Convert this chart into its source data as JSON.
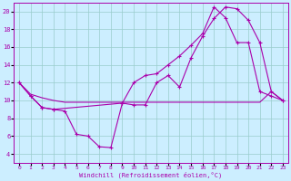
{
  "xlabel": "Windchill (Refroidissement éolien,°C)",
  "background_color": "#cceeff",
  "line_color": "#aa00aa",
  "grid_color": "#99cccc",
  "xlim": [
    -0.5,
    23.5
  ],
  "ylim": [
    3,
    21
  ],
  "yticks": [
    4,
    6,
    8,
    10,
    12,
    14,
    16,
    18,
    20
  ],
  "xticks": [
    0,
    1,
    2,
    3,
    4,
    5,
    6,
    7,
    8,
    9,
    10,
    11,
    12,
    13,
    14,
    15,
    16,
    17,
    18,
    19,
    20,
    21,
    22,
    23
  ],
  "line1_x": [
    0,
    1,
    2,
    3,
    4,
    5,
    6,
    7,
    8,
    9,
    10,
    11,
    12,
    13,
    14,
    15,
    16,
    17,
    18,
    19,
    20,
    21,
    22,
    23
  ],
  "line1_y": [
    12,
    10.5,
    9.2,
    9.0,
    8.8,
    6.2,
    6.0,
    4.8,
    4.7,
    9.7,
    9.5,
    9.5,
    12.0,
    12.8,
    11.5,
    14.8,
    17.2,
    19.2,
    20.5,
    20.3,
    19.0,
    16.5,
    11.0,
    10.0
  ],
  "line2_x": [
    0,
    1,
    2,
    3,
    4,
    5,
    6,
    7,
    8,
    9,
    10,
    11,
    12,
    13,
    14,
    15,
    16,
    17,
    18,
    19,
    20,
    21,
    22,
    23
  ],
  "line2_y": [
    12,
    10.7,
    10.3,
    10.0,
    9.8,
    9.8,
    9.8,
    9.8,
    9.8,
    9.8,
    9.8,
    9.8,
    9.8,
    9.8,
    9.8,
    9.8,
    9.8,
    9.8,
    9.8,
    9.8,
    9.8,
    9.8,
    11.0,
    10.0
  ],
  "line3_x": [
    0,
    1,
    2,
    3,
    9,
    10,
    11,
    12,
    13,
    14,
    15,
    16,
    17,
    18,
    19,
    20,
    21,
    22,
    23
  ],
  "line3_y": [
    12,
    10.5,
    9.2,
    9.0,
    9.7,
    12.0,
    12.8,
    13.0,
    14.0,
    15.0,
    16.2,
    17.5,
    20.5,
    19.3,
    16.5,
    16.5,
    11.0,
    10.5,
    10.0
  ]
}
